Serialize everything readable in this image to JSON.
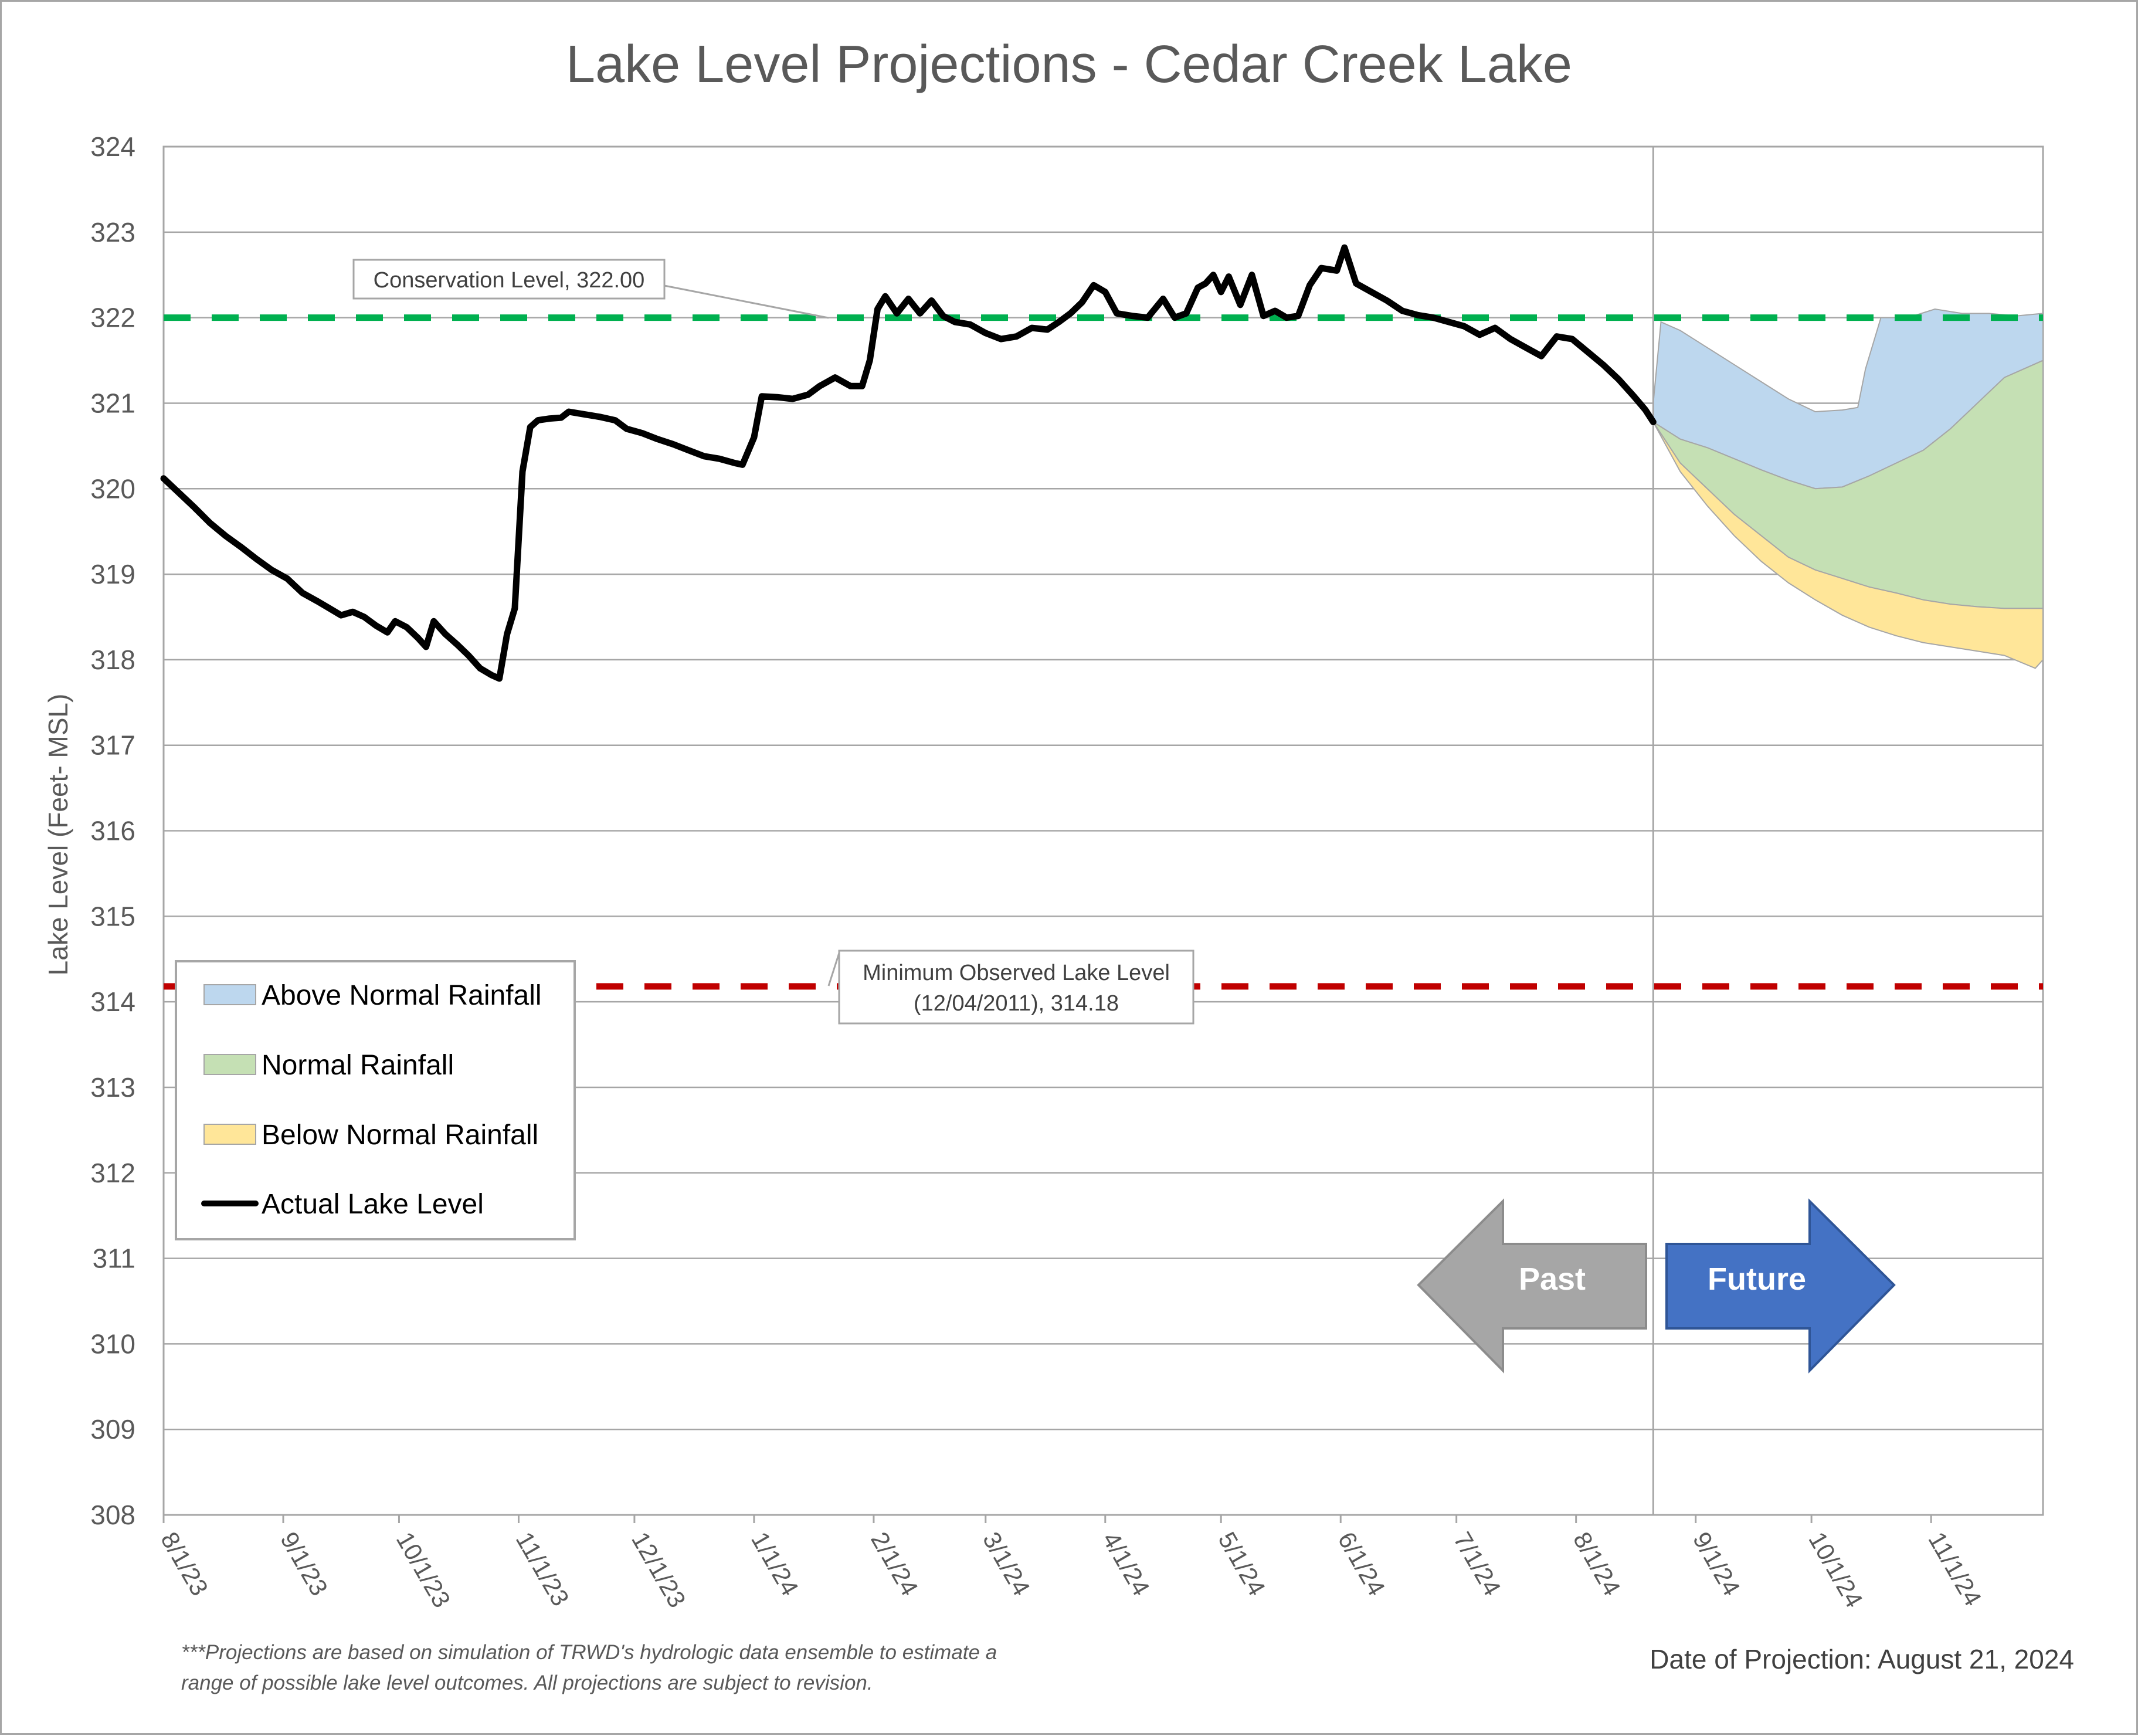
{
  "chart_data": {
    "type": "line",
    "title": "Lake Level Projections - Cedar Creek Lake",
    "ylabel": "Lake Level (Feet- MSL)",
    "xlabel": "",
    "ylim": [
      308,
      324
    ],
    "yticks": [
      "308",
      "309",
      "310",
      "311",
      "312",
      "313",
      "314",
      "315",
      "316",
      "317",
      "318",
      "319",
      "320",
      "321",
      "322",
      "323",
      "324"
    ],
    "xlim": [
      "2023-08-01",
      "2024-11-30"
    ],
    "xticks": [
      {
        "date": "2023-08-01",
        "label": "8/1/23"
      },
      {
        "date": "2023-09-01",
        "label": "9/1/23"
      },
      {
        "date": "2023-10-01",
        "label": "10/1/23"
      },
      {
        "date": "2023-11-01",
        "label": "11/1/23"
      },
      {
        "date": "2023-12-01",
        "label": "12/1/23"
      },
      {
        "date": "2024-01-01",
        "label": "1/1/24"
      },
      {
        "date": "2024-02-01",
        "label": "2/1/24"
      },
      {
        "date": "2024-03-01",
        "label": "3/1/24"
      },
      {
        "date": "2024-04-01",
        "label": "4/1/24"
      },
      {
        "date": "2024-05-01",
        "label": "5/1/24"
      },
      {
        "date": "2024-06-01",
        "label": "6/1/24"
      },
      {
        "date": "2024-07-01",
        "label": "7/1/24"
      },
      {
        "date": "2024-08-01",
        "label": "8/1/24"
      },
      {
        "date": "2024-09-01",
        "label": "9/1/24"
      },
      {
        "date": "2024-10-01",
        "label": "10/1/24"
      },
      {
        "date": "2024-11-01",
        "label": "11/1/24"
      }
    ],
    "grid": true,
    "projection_date": "2024-08-21",
    "reference_lines": [
      {
        "name": "Conservation Level",
        "value": 322.0,
        "color": "#00b050",
        "label": "Conservation Level, 322.00"
      },
      {
        "name": "Minimum Observed Lake Level",
        "value": 314.18,
        "color": "#c00000",
        "label_line1": "Minimum Observed Lake Level",
        "label_line2": "(12/04/2011), 314.18"
      }
    ],
    "series": [
      {
        "name": "Actual Lake Level",
        "color": "#000000",
        "points": [
          [
            "2023-08-01",
            320.12
          ],
          [
            "2023-08-05",
            319.95
          ],
          [
            "2023-08-09",
            319.78
          ],
          [
            "2023-08-13",
            319.6
          ],
          [
            "2023-08-17",
            319.45
          ],
          [
            "2023-08-21",
            319.32
          ],
          [
            "2023-08-25",
            319.18
          ],
          [
            "2023-08-29",
            319.05
          ],
          [
            "2023-09-02",
            318.95
          ],
          [
            "2023-09-06",
            318.78
          ],
          [
            "2023-09-10",
            318.68
          ],
          [
            "2023-09-13",
            318.6
          ],
          [
            "2023-09-16",
            318.52
          ],
          [
            "2023-09-19",
            318.56
          ],
          [
            "2023-09-22",
            318.5
          ],
          [
            "2023-09-25",
            318.4
          ],
          [
            "2023-09-28",
            318.32
          ],
          [
            "2023-09-30",
            318.45
          ],
          [
            "2023-10-03",
            318.38
          ],
          [
            "2023-10-06",
            318.25
          ],
          [
            "2023-10-08",
            318.15
          ],
          [
            "2023-10-10",
            318.45
          ],
          [
            "2023-10-13",
            318.3
          ],
          [
            "2023-10-16",
            318.18
          ],
          [
            "2023-10-19",
            318.05
          ],
          [
            "2023-10-22",
            317.9
          ],
          [
            "2023-10-25",
            317.82
          ],
          [
            "2023-10-27",
            317.78
          ],
          [
            "2023-10-29",
            318.3
          ],
          [
            "2023-10-31",
            318.6
          ],
          [
            "2023-11-02",
            320.2
          ],
          [
            "2023-11-04",
            320.72
          ],
          [
            "2023-11-06",
            320.8
          ],
          [
            "2023-11-09",
            320.82
          ],
          [
            "2023-11-12",
            320.83
          ],
          [
            "2023-11-14",
            320.9
          ],
          [
            "2023-11-18",
            320.87
          ],
          [
            "2023-11-22",
            320.84
          ],
          [
            "2023-11-26",
            320.8
          ],
          [
            "2023-11-29",
            320.7
          ],
          [
            "2023-12-03",
            320.65
          ],
          [
            "2023-12-07",
            320.58
          ],
          [
            "2023-12-11",
            320.52
          ],
          [
            "2023-12-15",
            320.45
          ],
          [
            "2023-12-19",
            320.38
          ],
          [
            "2023-12-23",
            320.35
          ],
          [
            "2023-12-27",
            320.3
          ],
          [
            "2023-12-29",
            320.28
          ],
          [
            "2024-01-01",
            320.6
          ],
          [
            "2024-01-03",
            321.08
          ],
          [
            "2024-01-07",
            321.07
          ],
          [
            "2024-01-11",
            321.05
          ],
          [
            "2024-01-15",
            321.1
          ],
          [
            "2024-01-18",
            321.2
          ],
          [
            "2024-01-22",
            321.3
          ],
          [
            "2024-01-26",
            321.2
          ],
          [
            "2024-01-29",
            321.2
          ],
          [
            "2024-01-31",
            321.5
          ],
          [
            "2024-02-02",
            322.1
          ],
          [
            "2024-02-04",
            322.25
          ],
          [
            "2024-02-07",
            322.05
          ],
          [
            "2024-02-10",
            322.22
          ],
          [
            "2024-02-13",
            322.05
          ],
          [
            "2024-02-16",
            322.2
          ],
          [
            "2024-02-19",
            322.02
          ],
          [
            "2024-02-22",
            321.95
          ],
          [
            "2024-02-26",
            321.92
          ],
          [
            "2024-03-01",
            321.82
          ],
          [
            "2024-03-05",
            321.75
          ],
          [
            "2024-03-09",
            321.78
          ],
          [
            "2024-03-13",
            321.88
          ],
          [
            "2024-03-17",
            321.86
          ],
          [
            "2024-03-20",
            321.95
          ],
          [
            "2024-03-23",
            322.05
          ],
          [
            "2024-03-26",
            322.18
          ],
          [
            "2024-03-29",
            322.38
          ],
          [
            "2024-04-01",
            322.3
          ],
          [
            "2024-04-04",
            322.05
          ],
          [
            "2024-04-08",
            322.02
          ],
          [
            "2024-04-12",
            322.0
          ],
          [
            "2024-04-16",
            322.22
          ],
          [
            "2024-04-19",
            322.0
          ],
          [
            "2024-04-22",
            322.05
          ],
          [
            "2024-04-25",
            322.35
          ],
          [
            "2024-04-27",
            322.4
          ],
          [
            "2024-04-29",
            322.5
          ],
          [
            "2024-05-01",
            322.3
          ],
          [
            "2024-05-03",
            322.48
          ],
          [
            "2024-05-06",
            322.15
          ],
          [
            "2024-05-09",
            322.5
          ],
          [
            "2024-05-12",
            322.02
          ],
          [
            "2024-05-15",
            322.08
          ],
          [
            "2024-05-18",
            322.0
          ],
          [
            "2024-05-21",
            322.02
          ],
          [
            "2024-05-24",
            322.38
          ],
          [
            "2024-05-27",
            322.58
          ],
          [
            "2024-05-31",
            322.55
          ],
          [
            "2024-06-02",
            322.82
          ],
          [
            "2024-06-05",
            322.4
          ],
          [
            "2024-06-09",
            322.3
          ],
          [
            "2024-06-13",
            322.2
          ],
          [
            "2024-06-17",
            322.08
          ],
          [
            "2024-06-21",
            322.03
          ],
          [
            "2024-06-25",
            322.0
          ],
          [
            "2024-06-29",
            321.95
          ],
          [
            "2024-07-03",
            321.9
          ],
          [
            "2024-07-07",
            321.8
          ],
          [
            "2024-07-11",
            321.88
          ],
          [
            "2024-07-15",
            321.75
          ],
          [
            "2024-07-19",
            321.65
          ],
          [
            "2024-07-23",
            321.55
          ],
          [
            "2024-07-27",
            321.78
          ],
          [
            "2024-07-31",
            321.75
          ],
          [
            "2024-08-04",
            321.6
          ],
          [
            "2024-08-08",
            321.45
          ],
          [
            "2024-08-12",
            321.28
          ],
          [
            "2024-08-16",
            321.08
          ],
          [
            "2024-08-19",
            320.92
          ],
          [
            "2024-08-21",
            320.78
          ]
        ]
      },
      {
        "name": "Above Normal Rainfall",
        "color": "#bdd7ee",
        "upper": [
          [
            "2024-08-21",
            321.0
          ],
          [
            "2024-08-23",
            321.95
          ],
          [
            "2024-08-28",
            321.85
          ],
          [
            "2024-09-04",
            321.65
          ],
          [
            "2024-09-11",
            321.45
          ],
          [
            "2024-09-18",
            321.25
          ],
          [
            "2024-09-25",
            321.05
          ],
          [
            "2024-10-02",
            320.9
          ],
          [
            "2024-10-09",
            320.92
          ],
          [
            "2024-10-13",
            320.95
          ],
          [
            "2024-10-15",
            321.4
          ],
          [
            "2024-10-19",
            322.0
          ],
          [
            "2024-10-26",
            322.0
          ],
          [
            "2024-11-02",
            322.1
          ],
          [
            "2024-11-09",
            322.05
          ],
          [
            "2024-11-16",
            322.05
          ],
          [
            "2024-11-23",
            322.02
          ],
          [
            "2024-11-30",
            322.05
          ]
        ],
        "lower": [
          [
            "2024-08-21",
            320.78
          ],
          [
            "2024-08-28",
            320.58
          ],
          [
            "2024-09-04",
            320.48
          ],
          [
            "2024-09-11",
            320.35
          ],
          [
            "2024-09-18",
            320.22
          ],
          [
            "2024-09-25",
            320.1
          ],
          [
            "2024-10-02",
            320.0
          ],
          [
            "2024-10-09",
            320.02
          ],
          [
            "2024-10-16",
            320.15
          ],
          [
            "2024-10-23",
            320.3
          ],
          [
            "2024-10-30",
            320.45
          ],
          [
            "2024-11-06",
            320.7
          ],
          [
            "2024-11-13",
            321.0
          ],
          [
            "2024-11-20",
            321.3
          ],
          [
            "2024-11-30",
            321.5
          ]
        ]
      },
      {
        "name": "Normal Rainfall",
        "color": "#c5e0b4",
        "upper": [
          [
            "2024-08-21",
            320.78
          ],
          [
            "2024-08-28",
            320.58
          ],
          [
            "2024-09-04",
            320.48
          ],
          [
            "2024-09-11",
            320.35
          ],
          [
            "2024-09-18",
            320.22
          ],
          [
            "2024-09-25",
            320.1
          ],
          [
            "2024-10-02",
            320.0
          ],
          [
            "2024-10-09",
            320.02
          ],
          [
            "2024-10-16",
            320.15
          ],
          [
            "2024-10-23",
            320.3
          ],
          [
            "2024-10-30",
            320.45
          ],
          [
            "2024-11-06",
            320.7
          ],
          [
            "2024-11-13",
            321.0
          ],
          [
            "2024-11-20",
            321.3
          ],
          [
            "2024-11-30",
            321.5
          ]
        ],
        "lower": [
          [
            "2024-08-21",
            320.78
          ],
          [
            "2024-08-28",
            320.3
          ],
          [
            "2024-09-04",
            320.0
          ],
          [
            "2024-09-11",
            319.7
          ],
          [
            "2024-09-18",
            319.45
          ],
          [
            "2024-09-25",
            319.2
          ],
          [
            "2024-10-02",
            319.05
          ],
          [
            "2024-10-09",
            318.95
          ],
          [
            "2024-10-16",
            318.85
          ],
          [
            "2024-10-23",
            318.78
          ],
          [
            "2024-10-30",
            318.7
          ],
          [
            "2024-11-06",
            318.65
          ],
          [
            "2024-11-13",
            318.62
          ],
          [
            "2024-11-20",
            318.6
          ],
          [
            "2024-11-30",
            318.6
          ]
        ]
      },
      {
        "name": "Below Normal Rainfall",
        "color": "#ffe699",
        "upper": [
          [
            "2024-08-21",
            320.78
          ],
          [
            "2024-08-28",
            320.3
          ],
          [
            "2024-09-04",
            320.0
          ],
          [
            "2024-09-11",
            319.7
          ],
          [
            "2024-09-18",
            319.45
          ],
          [
            "2024-09-25",
            319.2
          ],
          [
            "2024-10-02",
            319.05
          ],
          [
            "2024-10-09",
            318.95
          ],
          [
            "2024-10-16",
            318.85
          ],
          [
            "2024-10-23",
            318.78
          ],
          [
            "2024-10-30",
            318.7
          ],
          [
            "2024-11-06",
            318.65
          ],
          [
            "2024-11-13",
            318.62
          ],
          [
            "2024-11-20",
            318.6
          ],
          [
            "2024-11-30",
            318.6
          ]
        ],
        "lower": [
          [
            "2024-08-21",
            320.78
          ],
          [
            "2024-08-28",
            320.2
          ],
          [
            "2024-09-04",
            319.8
          ],
          [
            "2024-09-11",
            319.45
          ],
          [
            "2024-09-18",
            319.15
          ],
          [
            "2024-09-25",
            318.9
          ],
          [
            "2024-10-02",
            318.7
          ],
          [
            "2024-10-09",
            318.52
          ],
          [
            "2024-10-16",
            318.38
          ],
          [
            "2024-10-23",
            318.28
          ],
          [
            "2024-10-30",
            318.2
          ],
          [
            "2024-11-06",
            318.15
          ],
          [
            "2024-11-13",
            318.1
          ],
          [
            "2024-11-20",
            318.05
          ],
          [
            "2024-11-28",
            317.9
          ],
          [
            "2024-11-30",
            318.0
          ]
        ]
      }
    ],
    "legend": {
      "placement": "left",
      "entries": [
        "Above Normal Rainfall",
        "Normal Rainfall",
        "Below Normal Rainfall",
        "Actual Lake Level"
      ]
    }
  },
  "arrows": {
    "past": {
      "label": "Past",
      "color": "#a6a6a6"
    },
    "future": {
      "label": "Future",
      "color": "#4472c4"
    }
  },
  "footnote": {
    "line1": "***Projections are based on simulation of TRWD's hydrologic data ensemble to estimate a",
    "line2": "range of possible lake level outcomes.  All projections are subject to revision."
  },
  "projection_date_label": "Date of Projection: August 21, 2024"
}
